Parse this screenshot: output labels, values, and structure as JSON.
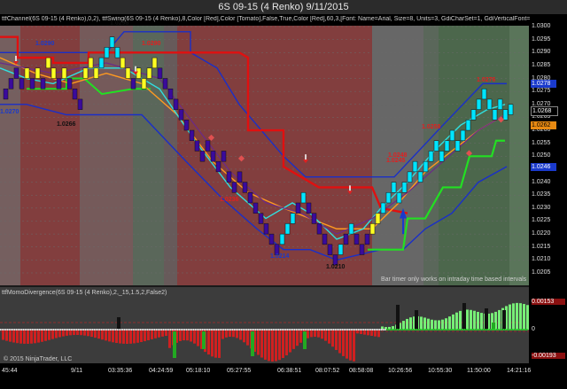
{
  "window": {
    "title": "6S 09-15 (4 Renko)  9/11/2015"
  },
  "price_panel": {
    "indicator_header": "ttfChannel(6S 09-15 (4 Renko),0,2), ttfSwing(6S 09-15 (4 Renko),8,Color [Red],Color [Tomato],False,True,Color [Red],60,3,[Font: Name=Arial, Size=8, Units=3, GdiCharSet=1, GdiVerticalFont=",
    "timer_note": "Bar timer only works on intraday time based intervals",
    "price_axis_labels": [
      "1.0300",
      "1.0295",
      "1.0290",
      "1.0285",
      "1.0280",
      "1.0275",
      "1.0270",
      "1.0265",
      "1.0260",
      "1.0255",
      "1.0250",
      "1.0245",
      "1.0240",
      "1.0235",
      "1.0230",
      "1.0225",
      "1.0220",
      "1.0215",
      "1.0210",
      "1.0205"
    ],
    "price_tags": [
      {
        "text": "1.0278",
        "color": "#1a3acc"
      },
      {
        "text": "1.0268",
        "color": "#000000"
      },
      {
        "text": "1.0262",
        "color": "#e88a12"
      },
      {
        "text": "1.0246",
        "color": "#1a3acc"
      }
    ],
    "swing_labels": [
      {
        "text": "1.0298",
        "color": "#111111"
      },
      {
        "text": "1.0290",
        "color": "#1a3acc"
      },
      {
        "text": "1.0290",
        "color": "#e02020"
      },
      {
        "text": "1.0270",
        "color": "#1a3acc"
      },
      {
        "text": "1.0266",
        "color": "#111111"
      },
      {
        "text": "1.0248",
        "color": "#e02020"
      },
      {
        "text": "1.0236",
        "color": "#e02020"
      },
      {
        "text": "1.0214",
        "color": "#1a3acc"
      },
      {
        "text": "1.0210",
        "color": "#111111"
      },
      {
        "text": "1.0245",
        "color": "#e02020"
      },
      {
        "text": "1.0258",
        "color": "#e02020"
      },
      {
        "text": "1.0276",
        "color": "#e02020"
      }
    ]
  },
  "oscillator_panel": {
    "indicator_header": "ttfMomoDivergence(6S 09-15 (4 Renko),2,_15,1.5,2,False2)",
    "axis_labels": [
      "0.00153",
      "0",
      "-0.00193"
    ]
  },
  "time_axis": {
    "labels": [
      "45:44",
      "9/11",
      "03:35:36",
      "04:24:59",
      "05:18:10",
      "05:27:55",
      "06:38:51",
      "08:07:52",
      "08:58:08",
      "10:26:56",
      "10:55:30",
      "11:50:00",
      "14:21:16"
    ]
  },
  "footer": {
    "copyright": "© 2015 NinjaTrader, LLC"
  },
  "colors": {
    "bull_bar": "#00e5ff",
    "bear_bar": "#3a0a9c",
    "inside_bar": "#ffff22",
    "ma_fast": "#30e0e0",
    "ma_slow": "#ff9a20",
    "channel": "#1a2fc8",
    "swing_stop": "#e01010",
    "trail_stop": "#22e022",
    "bg_red": "#8a3a3a",
    "bg_green": "#4a6a4a"
  }
}
